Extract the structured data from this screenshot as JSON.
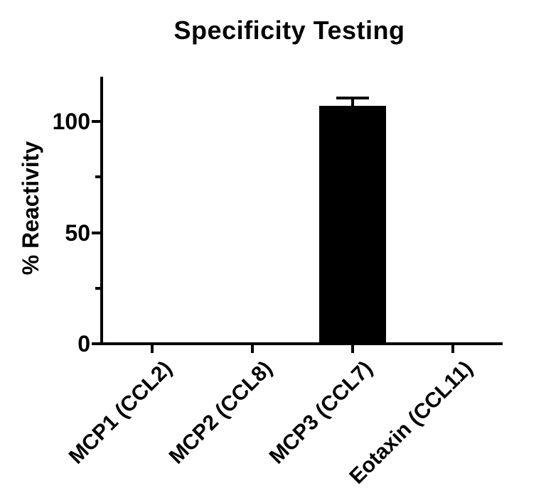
{
  "figure": {
    "background": "#ffffff"
  },
  "chart_data": {
    "type": "bar",
    "title": "Specificity Testing",
    "ylabel": "% Reactivity",
    "xlabel": "",
    "categories": [
      "MCP1 (CCL2)",
      "MCP2 (CCL8)",
      "MCP3 (CCL7)",
      "Eotaxin (CCL11)"
    ],
    "values": [
      0,
      0,
      107,
      0
    ],
    "errors_upper": [
      0,
      0,
      3.5,
      0
    ],
    "ylim": [
      0,
      120
    ],
    "yticks": [
      0,
      50,
      100
    ],
    "yticks_minor": [
      25,
      75
    ],
    "x_tick_label_rotation_deg": 45,
    "grid": false,
    "legend": false,
    "bar_color": "#000000",
    "axis_color": "#000000",
    "text_color": "#000000"
  }
}
